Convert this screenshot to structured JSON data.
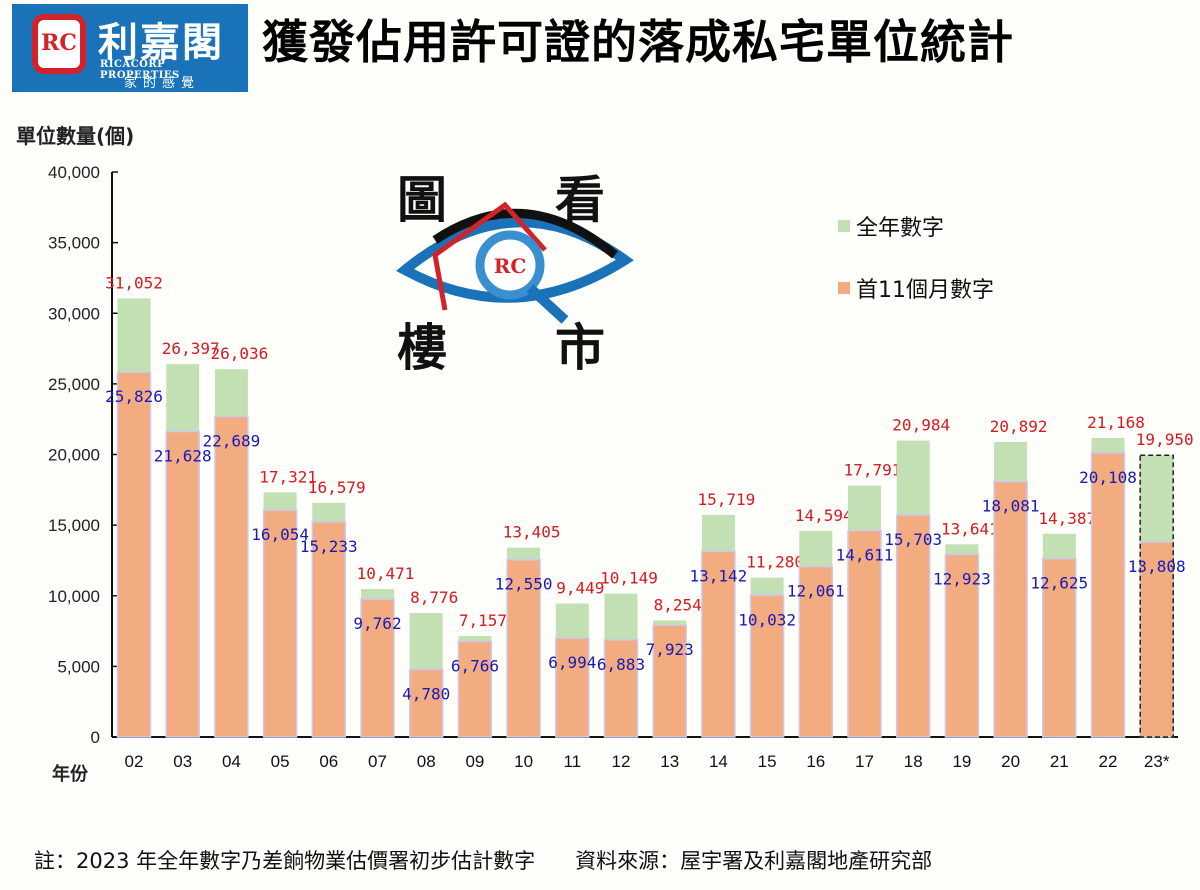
{
  "header": {
    "logo": {
      "mark": "RC",
      "name_cn": "利嘉閣",
      "name_en": "RICACORP PROPERTIES",
      "slogan": "家的感覺"
    },
    "title": "獲發佔用許可證的落成私宅單位統計"
  },
  "badge": {
    "chars": [
      "圖",
      "看",
      "樓",
      "市"
    ]
  },
  "legend": [
    {
      "label": "全年數字",
      "color": "#c3dfb4"
    },
    {
      "label": "首11個月數字",
      "color": "#f2ac80"
    }
  ],
  "footer": {
    "note": "註：2023 年全年數字乃差餉物業估價署初步估計數字",
    "source": "資料來源：屋宇署及利嘉閣地產研究部"
  },
  "chart_data": {
    "type": "bar",
    "title": "獲發佔用許可證的落成私宅單位統計",
    "xlabel": "年份",
    "ylabel": "單位數量(個)",
    "ylim": [
      0,
      40000
    ],
    "yticks": [
      0,
      5000,
      10000,
      15000,
      20000,
      25000,
      30000,
      35000,
      40000
    ],
    "ytick_labels": [
      "0",
      "5,000",
      "10,000",
      "15,000",
      "20,000",
      "25,000",
      "30,000",
      "35,000",
      "40,000"
    ],
    "grid": false,
    "legend_position": "upper right",
    "categories": [
      "02",
      "03",
      "04",
      "05",
      "06",
      "07",
      "08",
      "09",
      "10",
      "11",
      "12",
      "13",
      "14",
      "15",
      "16",
      "17",
      "18",
      "19",
      "20",
      "21",
      "22",
      "23*"
    ],
    "series": [
      {
        "name": "全年數字",
        "color": "#c3dfb4",
        "label_color": "#d71920",
        "values": [
          31052,
          26397,
          26036,
          17321,
          16579,
          10471,
          8776,
          7157,
          13405,
          9449,
          10149,
          8254,
          15719,
          11280,
          14594,
          17791,
          20984,
          13641,
          20892,
          14387,
          21168,
          19950
        ]
      },
      {
        "name": "首11個月數字",
        "color": "#f2ac80",
        "label_color": "#1a1ab8",
        "values": [
          25826,
          21628,
          22689,
          16054,
          15233,
          9762,
          4780,
          6766,
          12550,
          6994,
          6883,
          7923,
          13142,
          10032,
          12061,
          14611,
          15703,
          12923,
          18081,
          12625,
          20108,
          13808
        ]
      }
    ],
    "annotations": [
      "23* full-year figure is a preliminary estimate (dashed outline)"
    ]
  }
}
